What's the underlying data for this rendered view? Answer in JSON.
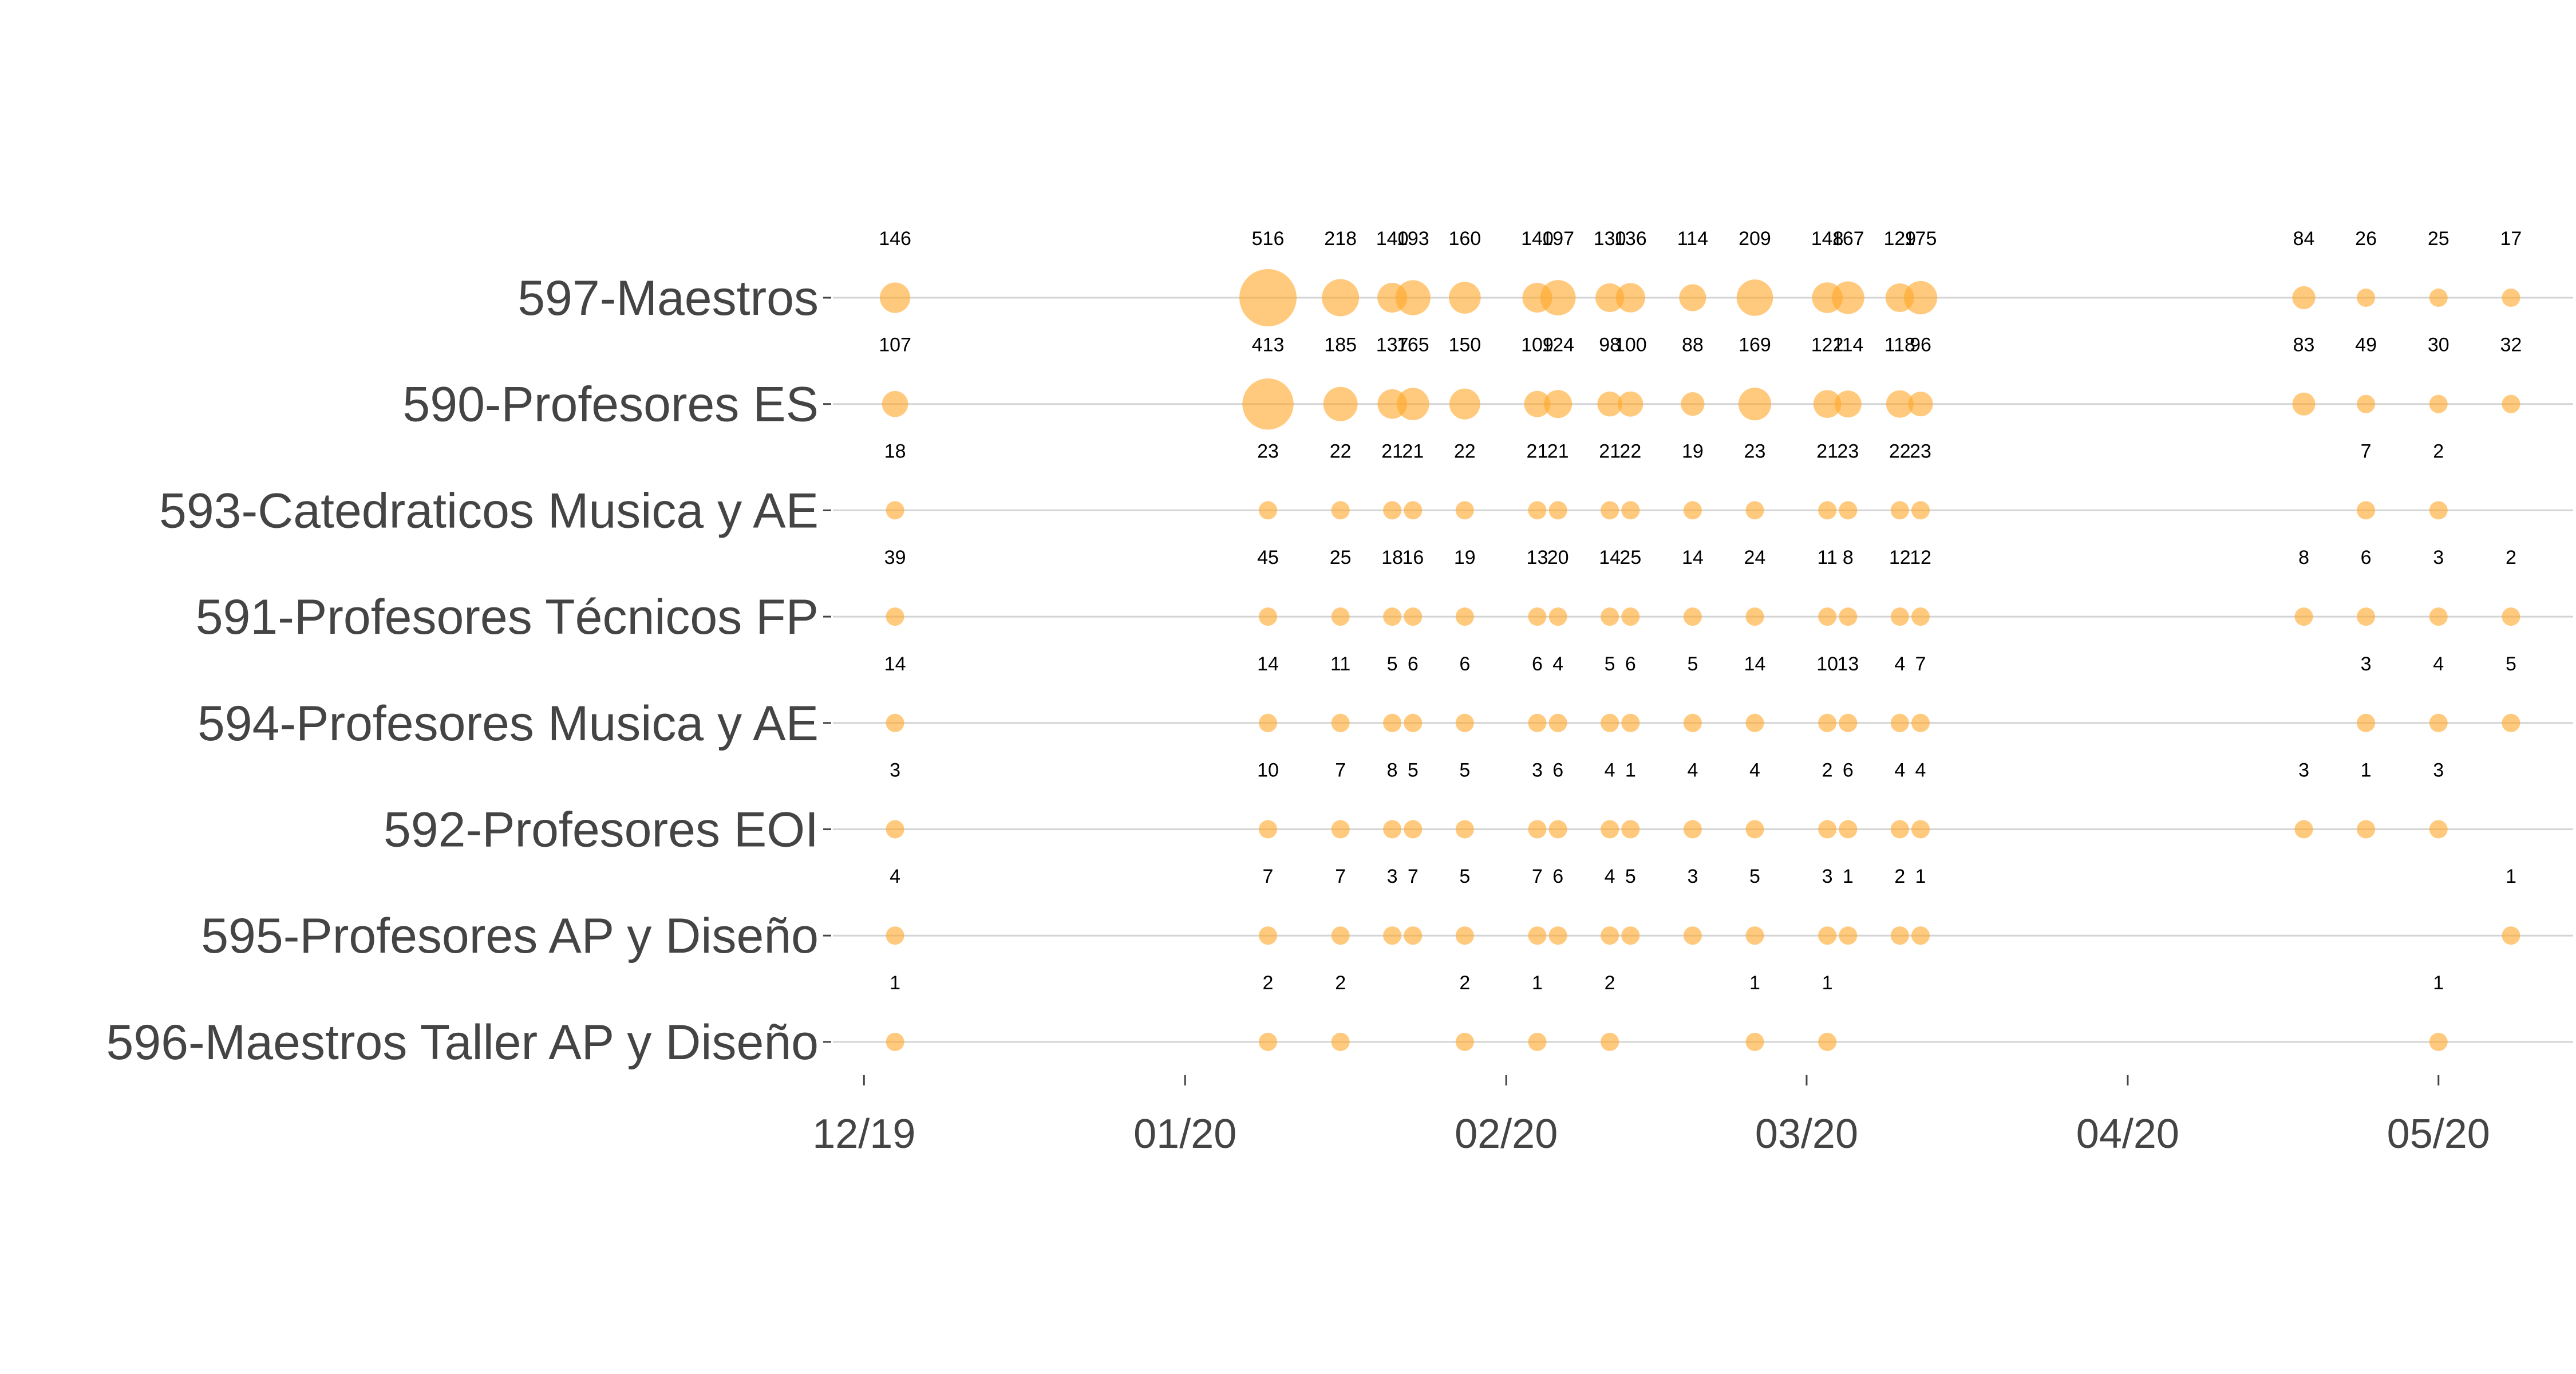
{
  "chart_data": {
    "type": "scatter",
    "title": "",
    "xlabel": "",
    "ylabel": "",
    "x_tick_labels": [
      {
        "date": "2019-12-01",
        "label": "12/19"
      },
      {
        "date": "2020-01-01",
        "label": "01/20"
      },
      {
        "date": "2020-02-01",
        "label": "02/20"
      },
      {
        "date": "2020-03-01",
        "label": "03/20"
      },
      {
        "date": "2020-04-01",
        "label": "04/20"
      },
      {
        "date": "2020-05-01",
        "label": "05/20"
      }
    ],
    "xlim": [
      "2019-11-28",
      "2020-05-14"
    ],
    "point_color": "#FFA726",
    "point_opacity": 0.6,
    "size_encodes": "value",
    "categories": [
      "597-Maestros",
      "590-Profesores ES",
      "593-Catedraticos Musica y AE",
      "591-Profesores Técnicos FP",
      "594-Profesores Musica y AE",
      "592-Profesores EOI",
      "595-Profesores AP y Diseño",
      "596-Maestros Taller AP y Diseño"
    ],
    "dates": [
      "2019-12-04",
      "2020-01-09",
      "2020-01-16",
      "2020-01-21",
      "2020-01-23",
      "2020-01-28",
      "2020-02-04",
      "2020-02-06",
      "2020-02-11",
      "2020-02-13",
      "2020-02-19",
      "2020-02-25",
      "2020-03-03",
      "2020-03-05",
      "2020-03-10",
      "2020-03-12",
      "2020-04-18",
      "2020-04-24",
      "2020-05-01",
      "2020-05-08"
    ],
    "series": [
      {
        "category": "597-Maestros",
        "values": [
          146,
          516,
          218,
          140,
          193,
          160,
          140,
          197,
          130,
          136,
          114,
          209,
          148,
          167,
          129,
          175,
          84,
          26,
          25,
          17
        ]
      },
      {
        "category": "590-Profesores ES",
        "values": [
          107,
          413,
          185,
          137,
          165,
          150,
          109,
          124,
          98,
          100,
          88,
          169,
          122,
          114,
          118,
          96,
          83,
          49,
          30,
          32
        ]
      },
      {
        "category": "593-Catedraticos Musica y AE",
        "values": [
          18,
          23,
          22,
          21,
          21,
          22,
          21,
          21,
          21,
          22,
          19,
          23,
          21,
          23,
          22,
          23,
          null,
          7,
          2,
          null
        ]
      },
      {
        "category": "591-Profesores Técnicos FP",
        "values": [
          39,
          45,
          25,
          18,
          16,
          19,
          13,
          20,
          14,
          25,
          14,
          24,
          11,
          8,
          12,
          12,
          8,
          6,
          3,
          2
        ]
      },
      {
        "category": "594-Profesores Musica y AE",
        "values": [
          14,
          14,
          11,
          5,
          6,
          6,
          6,
          4,
          5,
          6,
          5,
          14,
          10,
          13,
          4,
          7,
          null,
          3,
          4,
          5
        ]
      },
      {
        "category": "592-Profesores EOI",
        "values": [
          3,
          10,
          7,
          8,
          5,
          5,
          3,
          6,
          4,
          1,
          4,
          4,
          2,
          6,
          4,
          4,
          3,
          1,
          3,
          null
        ]
      },
      {
        "category": "595-Profesores AP y Diseño",
        "values": [
          4,
          7,
          7,
          3,
          7,
          5,
          7,
          6,
          4,
          5,
          3,
          5,
          3,
          1,
          2,
          1,
          null,
          null,
          null,
          1
        ]
      },
      {
        "category": "596-Maestros Taller AP y Diseño",
        "values": [
          1,
          2,
          2,
          null,
          null,
          2,
          1,
          null,
          2,
          null,
          null,
          1,
          1,
          null,
          null,
          null,
          null,
          null,
          1,
          null
        ]
      }
    ],
    "grid": {
      "horizontal": true,
      "vertical": false
    },
    "legend": "none"
  }
}
